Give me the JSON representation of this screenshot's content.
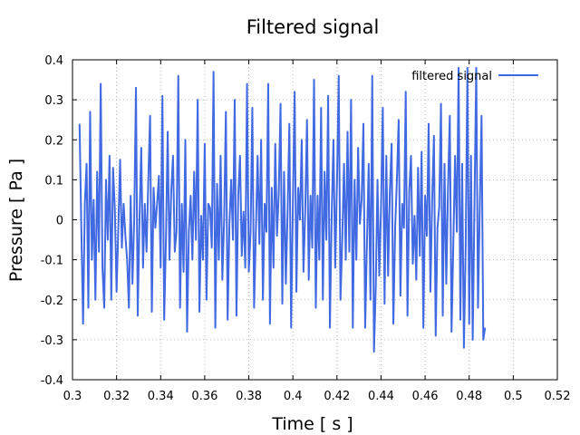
{
  "chart_data": {
    "type": "line",
    "title": "Filtered signal",
    "xlabel": "Time [ s ]",
    "ylabel": "Pressure [ Pa ]",
    "xlim": [
      0.3,
      0.52
    ],
    "ylim": [
      -0.4,
      0.4
    ],
    "xticks": [
      "0.3",
      "0.32",
      "0.34",
      "0.36",
      "0.38",
      "0.4",
      "0.42",
      "0.44",
      "0.46",
      "0.48",
      "0.5",
      "0.52"
    ],
    "yticks": [
      "0.4",
      "0.3",
      "0.2",
      "0.1",
      "0",
      "-0.1",
      "-0.2",
      "-0.3",
      "-0.4"
    ],
    "xtick_values": [
      0.3,
      0.32,
      0.34,
      0.36,
      0.38,
      0.4,
      0.42,
      0.44,
      0.46,
      0.48,
      0.5,
      0.52
    ],
    "ytick_values": [
      0.4,
      0.3,
      0.2,
      0.1,
      0,
      -0.1,
      -0.2,
      -0.3,
      -0.4
    ],
    "grid": true,
    "legend_position": "top-right",
    "series": [
      {
        "name": "filtered signal",
        "color": "#4169e1",
        "x_start": 0.3032,
        "dx": 0.0008,
        "y": [
          0.24,
          -0.02,
          -0.26,
          0.04,
          0.14,
          -0.22,
          0.27,
          -0.1,
          0.05,
          -0.2,
          0.12,
          -0.08,
          0.34,
          -0.12,
          -0.22,
          0.1,
          -0.05,
          0.16,
          -0.2,
          0.13,
          0.03,
          -0.18,
          -0.02,
          0.15,
          -0.07,
          0.04,
          -0.04,
          -0.1,
          -0.22,
          0.06,
          -0.16,
          0.0,
          0.33,
          -0.24,
          0.0,
          0.18,
          -0.12,
          0.04,
          -0.08,
          0.1,
          0.26,
          -0.23,
          0.08,
          -0.02,
          0.04,
          0.11,
          -0.12,
          0.31,
          -0.25,
          -0.05,
          0.22,
          -0.1,
          0.07,
          0.16,
          -0.08,
          -0.03,
          0.36,
          -0.22,
          0.04,
          -0.13,
          0.2,
          -0.28,
          -0.03,
          0.06,
          -0.1,
          0.12,
          -0.05,
          0.3,
          -0.23,
          0.01,
          -0.1,
          0.19,
          -0.2,
          0.04,
          0.03,
          -0.07,
          0.37,
          -0.27,
          0.09,
          -0.1,
          0.16,
          -0.15,
          0.0,
          0.27,
          -0.25,
          -0.01,
          0.1,
          -0.05,
          0.3,
          -0.24,
          0.06,
          0.16,
          -0.09,
          0.02,
          -0.12,
          0.34,
          -0.13,
          -0.03,
          0.28,
          -0.22,
          -0.03,
          0.16,
          -0.06,
          0.2,
          -0.2,
          0.04,
          -0.03,
          0.34,
          -0.26,
          0.08,
          -0.12,
          0.19,
          -0.04,
          0.07,
          0.29,
          -0.21,
          0.12,
          -0.16,
          0.02,
          0.24,
          -0.27,
          0.04,
          0.32,
          -0.18,
          0.08,
          0.0,
          0.2,
          -0.13,
          0.02,
          0.25,
          -0.15,
          0.06,
          -0.07,
          0.35,
          -0.22,
          0.06,
          -0.1,
          0.28,
          -0.2,
          0.12,
          -0.05,
          0.31,
          -0.27,
          0.01,
          0.2,
          -0.12,
          0.09,
          0.36,
          -0.2,
          -0.05,
          0.14,
          -0.1,
          0.22,
          -0.08,
          0.3,
          -0.27,
          0.1,
          -0.1,
          0.18,
          -0.01,
          0.05,
          0.24,
          -0.27,
          -0.06,
          0.14,
          -0.2,
          0.36,
          -0.33,
          -0.17,
          0.1,
          -0.14,
          0.03,
          0.28,
          -0.21,
          0.16,
          -0.14,
          0.07,
          0.19,
          -0.26,
          -0.02,
          0.1,
          0.25,
          -0.19,
          0.04,
          -0.02,
          0.32,
          -0.24,
          0.07,
          0.16,
          -0.11,
          0.01,
          -0.15,
          0.13,
          -0.09,
          0.17,
          -0.27,
          0.06,
          -0.04,
          0.24,
          -0.18,
          0.05,
          0.21,
          -0.29,
          -0.02,
          0.03,
          0.29,
          -0.24,
          0.14,
          -0.16,
          0.08,
          0.26,
          -0.28,
          -0.06,
          0.16,
          -0.03,
          0.38,
          -0.25,
          0.14,
          -0.32,
          -0.07,
          0.38,
          -0.26,
          0.16,
          -0.3,
          0.04,
          0.38,
          -0.22,
          0.03,
          0.26,
          -0.3,
          -0.27
        ]
      }
    ]
  }
}
